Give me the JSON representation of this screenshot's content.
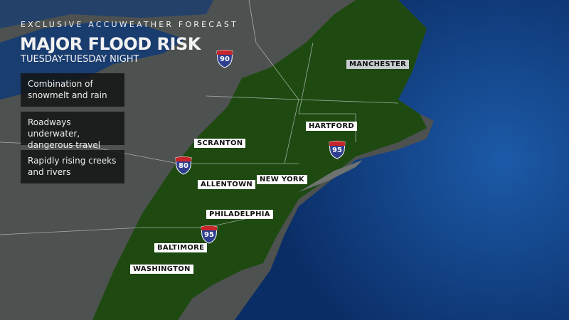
{
  "header": {
    "kicker": "EXCLUSIVE ACCUWEATHER FORECAST",
    "title": "MAJOR FLOOD RISK",
    "subtitle": "TUESDAY-TUESDAY NIGHT"
  },
  "impacts": [
    {
      "text": "Combination of snowmelt and rain"
    },
    {
      "text": "Roadways underwater, dangerous travel"
    },
    {
      "text": "Rapidly rising creeks and rivers"
    }
  ],
  "cities": [
    "MANCHESTER",
    "HARTFORD",
    "SCRANTON",
    "ALLENTOWN",
    "NEW YORK",
    "PHILADELPHIA",
    "BALTIMORE",
    "WASHINGTON"
  ],
  "highways": [
    "90",
    "80",
    "95",
    "95"
  ],
  "legend": {
    "risk_area": "Major flood risk"
  },
  "colors": {
    "risk_fill": "#1e4a12",
    "ocean": "#0d3a7a",
    "land": "#4d514f",
    "label_bg": "#ffffff",
    "shield_blue": "#2f3f8f",
    "shield_red": "#c8252b"
  }
}
